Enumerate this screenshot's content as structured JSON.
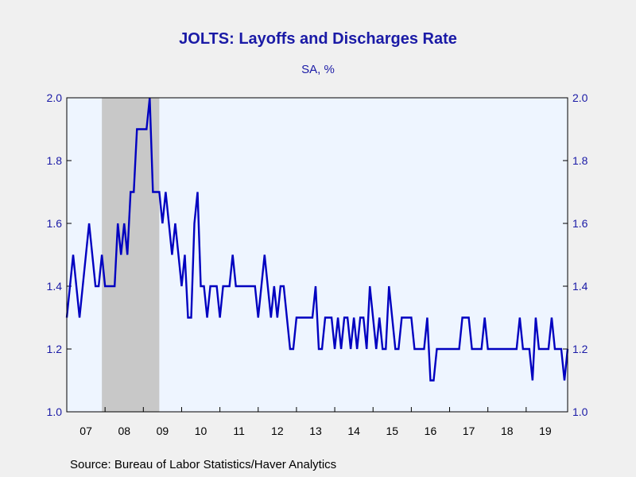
{
  "chart_data": {
    "type": "line",
    "title": "JOLTS: Layoffs and Discharges Rate",
    "subtitle": "SA, %",
    "source": "Source:  Bureau of Labor Statistics/Haver Analytics",
    "x_start": "2007-01",
    "x_ticks": [
      "07",
      "08",
      "09",
      "10",
      "11",
      "12",
      "13",
      "14",
      "15",
      "16",
      "17",
      "18",
      "19"
    ],
    "ylim": [
      1.0,
      2.0
    ],
    "y_ticks": [
      "1.0",
      "1.2",
      "1.4",
      "1.6",
      "1.8",
      "2.0"
    ],
    "recession": {
      "start": "2007-12",
      "end": "2009-06"
    },
    "series": [
      {
        "color": "#0000c0",
        "values": [
          1.3,
          1.4,
          1.5,
          1.4,
          1.3,
          1.4,
          1.5,
          1.6,
          1.5,
          1.4,
          1.4,
          1.5,
          1.4,
          1.4,
          1.4,
          1.4,
          1.6,
          1.5,
          1.6,
          1.5,
          1.7,
          1.7,
          1.9,
          1.9,
          1.9,
          1.9,
          2.0,
          1.7,
          1.7,
          1.7,
          1.6,
          1.7,
          1.6,
          1.5,
          1.6,
          1.5,
          1.4,
          1.5,
          1.3,
          1.3,
          1.6,
          1.7,
          1.4,
          1.4,
          1.3,
          1.4,
          1.4,
          1.4,
          1.3,
          1.4,
          1.4,
          1.4,
          1.5,
          1.4,
          1.4,
          1.4,
          1.4,
          1.4,
          1.4,
          1.4,
          1.3,
          1.4,
          1.5,
          1.4,
          1.3,
          1.4,
          1.3,
          1.4,
          1.4,
          1.3,
          1.2,
          1.2,
          1.3,
          1.3,
          1.3,
          1.3,
          1.3,
          1.3,
          1.4,
          1.2,
          1.2,
          1.3,
          1.3,
          1.3,
          1.2,
          1.3,
          1.2,
          1.3,
          1.3,
          1.2,
          1.3,
          1.2,
          1.3,
          1.3,
          1.2,
          1.4,
          1.3,
          1.2,
          1.3,
          1.2,
          1.2,
          1.4,
          1.3,
          1.2,
          1.2,
          1.3,
          1.3,
          1.3,
          1.3,
          1.2,
          1.2,
          1.2,
          1.2,
          1.3,
          1.1,
          1.1,
          1.2,
          1.2,
          1.2,
          1.2,
          1.2,
          1.2,
          1.2,
          1.2,
          1.3,
          1.3,
          1.3,
          1.2,
          1.2,
          1.2,
          1.2,
          1.3,
          1.2,
          1.2,
          1.2,
          1.2,
          1.2,
          1.2,
          1.2,
          1.2,
          1.2,
          1.2,
          1.3,
          1.2,
          1.2,
          1.2,
          1.1,
          1.3,
          1.2,
          1.2,
          1.2,
          1.2,
          1.3,
          1.2,
          1.2,
          1.2,
          1.1,
          1.2
        ]
      }
    ]
  }
}
